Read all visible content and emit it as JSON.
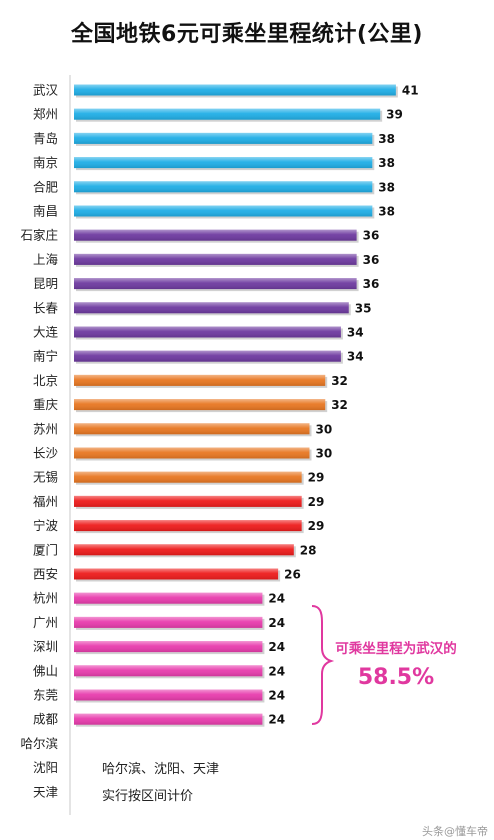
{
  "chart_data": {
    "type": "bar",
    "orientation": "horizontal",
    "title": "全国地铁6元可乘坐里程统计(公里)",
    "categories": [
      "武汉",
      "郑州",
      "青岛",
      "南京",
      "合肥",
      "南昌",
      "石家庄",
      "上海",
      "昆明",
      "长春",
      "大连",
      "南宁",
      "北京",
      "重庆",
      "苏州",
      "长沙",
      "无锡",
      "福州",
      "宁波",
      "厦门",
      "西安",
      "杭州",
      "广州",
      "深圳",
      "佛山",
      "东莞",
      "成都",
      "哈尔滨",
      "沈阳",
      "天津"
    ],
    "values": [
      41,
      39,
      38,
      38,
      38,
      38,
      36,
      36,
      36,
      35,
      34,
      34,
      32,
      32,
      30,
      30,
      29,
      29,
      29,
      28,
      26,
      24,
      24,
      24,
      24,
      24,
      24,
      null,
      null,
      null
    ],
    "bar_colors": [
      "#20aee6",
      "#20aee6",
      "#20aee6",
      "#20aee6",
      "#20aee6",
      "#20aee6",
      "#6e3aa0",
      "#6e3aa0",
      "#6e3aa0",
      "#6e3aa0",
      "#6e3aa0",
      "#6e3aa0",
      "#e87722",
      "#e87722",
      "#e87722",
      "#e87722",
      "#e87722",
      "#ee1c1c",
      "#ee1c1c",
      "#ee1c1c",
      "#ee1c1c",
      "#e83cad",
      "#e83cad",
      "#e83cad",
      "#e83cad",
      "#e83cad",
      "#e83cad",
      null,
      null,
      null
    ],
    "xlim": [
      0,
      41
    ],
    "grid": false,
    "legend": "none",
    "annotation": {
      "line1": "可乘坐里程为武汉的",
      "line2": "58.5%",
      "color": "#e0389f"
    },
    "note": [
      "哈尔滨、沈阳、天津",
      "实行按区间计价"
    ]
  },
  "watermark": "头条@懂车帝"
}
